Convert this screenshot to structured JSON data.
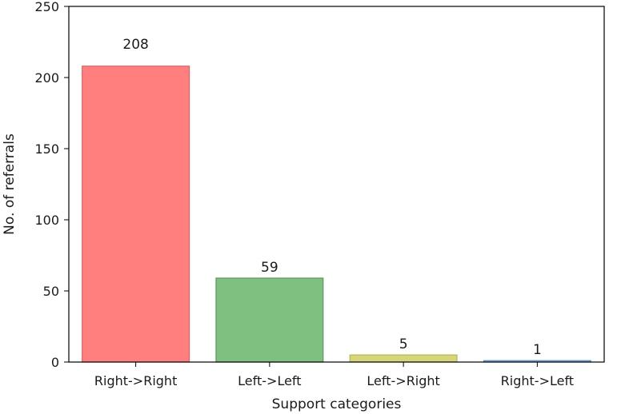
{
  "chart_data": {
    "type": "bar",
    "title": "",
    "xlabel": "Support categories",
    "ylabel": "No. of referrals",
    "categories": [
      "Right->Right",
      "Left->Left",
      "Left->Right",
      "Right->Left"
    ],
    "values": [
      208,
      59,
      5,
      1
    ],
    "data_labels": [
      "208",
      "59",
      "5",
      "1"
    ],
    "colors": [
      "#ff7f7f",
      "#7fbf7f",
      "#d5d57a",
      "#7fb5df"
    ],
    "edge_colors": [
      "#e06060",
      "#5a9a5a",
      "#b8b850",
      "#5a90c0"
    ],
    "ylim": [
      0,
      250
    ],
    "yticks": [
      0,
      50,
      100,
      150,
      200,
      250
    ],
    "ytick_labels": [
      "0",
      "50",
      "100",
      "150",
      "200",
      "250"
    ],
    "grid": false,
    "legend": "none"
  }
}
